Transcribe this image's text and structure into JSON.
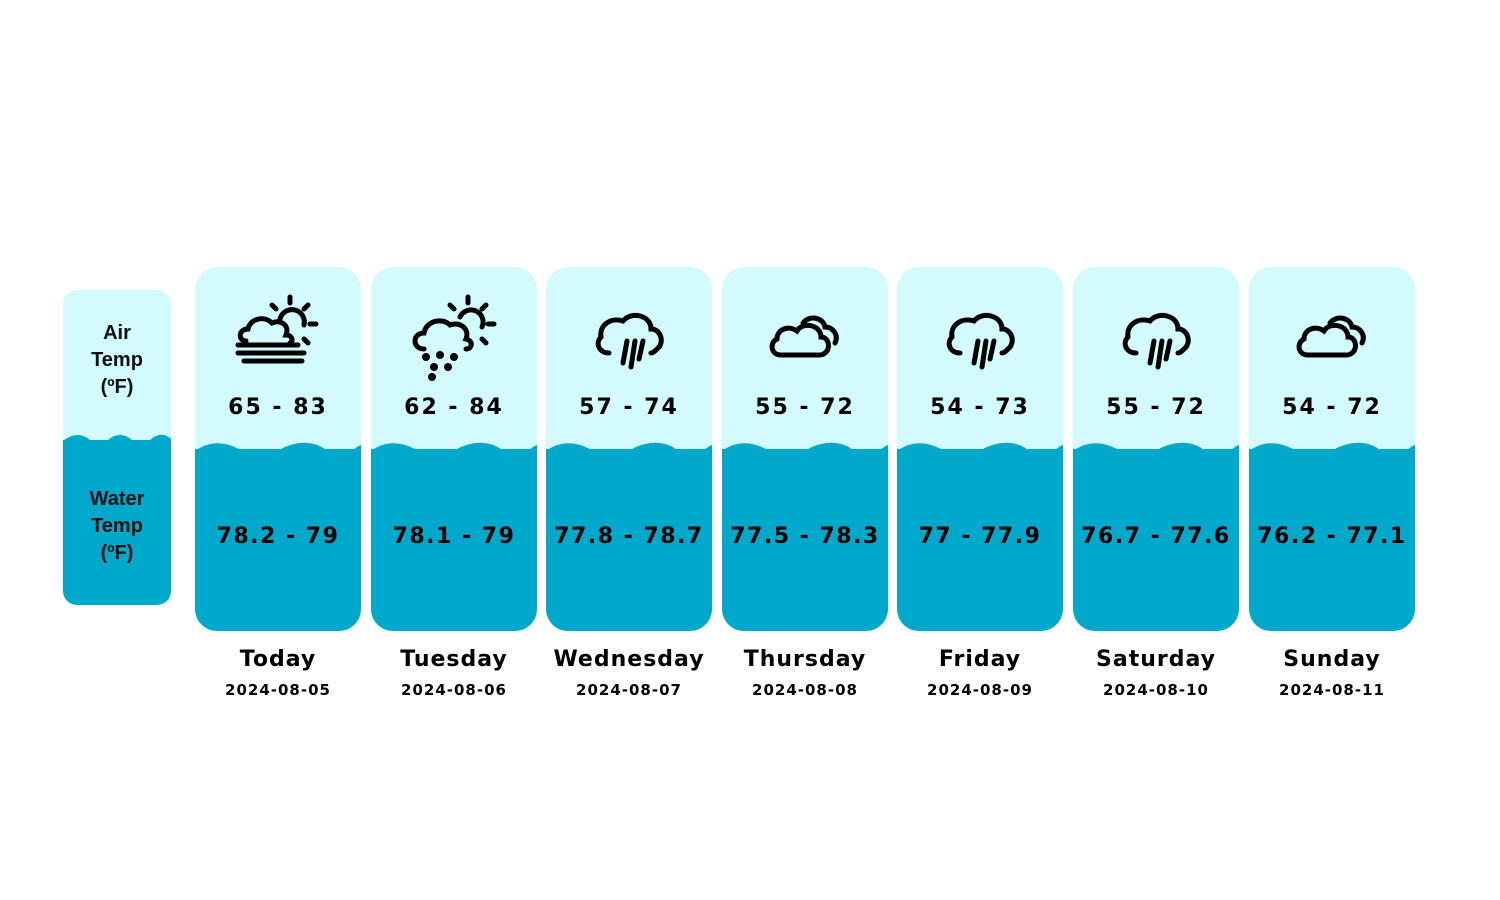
{
  "legend": {
    "air_label": "Air\nTemp\n(ºF)",
    "water_label": "Water\nTemp\n(ºF)"
  },
  "colors": {
    "air_bg": "#d3fbff",
    "water_bg": "#00a9cc",
    "text": "#000000"
  },
  "days": [
    {
      "name": "Today",
      "date": "2024-08-05",
      "air": "65 - 83",
      "water": "78.2 - 79",
      "icon": "fog-partly-sunny-icon"
    },
    {
      "name": "Tuesday",
      "date": "2024-08-06",
      "air": "62 - 84",
      "water": "78.1 - 79",
      "icon": "hail-partly-sunny-icon"
    },
    {
      "name": "Wednesday",
      "date": "2024-08-07",
      "air": "57 - 74",
      "water": "77.8 - 78.7",
      "icon": "rain-cloud-icon"
    },
    {
      "name": "Thursday",
      "date": "2024-08-08",
      "air": "55 - 72",
      "water": "77.5 - 78.3",
      "icon": "cloudy-icon"
    },
    {
      "name": "Friday",
      "date": "2024-08-09",
      "air": "54 - 73",
      "water": "77 - 77.9",
      "icon": "rain-cloud-icon"
    },
    {
      "name": "Saturday",
      "date": "2024-08-10",
      "air": "55 - 72",
      "water": "76.7 - 77.6",
      "icon": "rain-cloud-icon"
    },
    {
      "name": "Sunday",
      "date": "2024-08-11",
      "air": "54 - 72",
      "water": "76.2 - 77.1",
      "icon": "cloudy-icon"
    }
  ]
}
